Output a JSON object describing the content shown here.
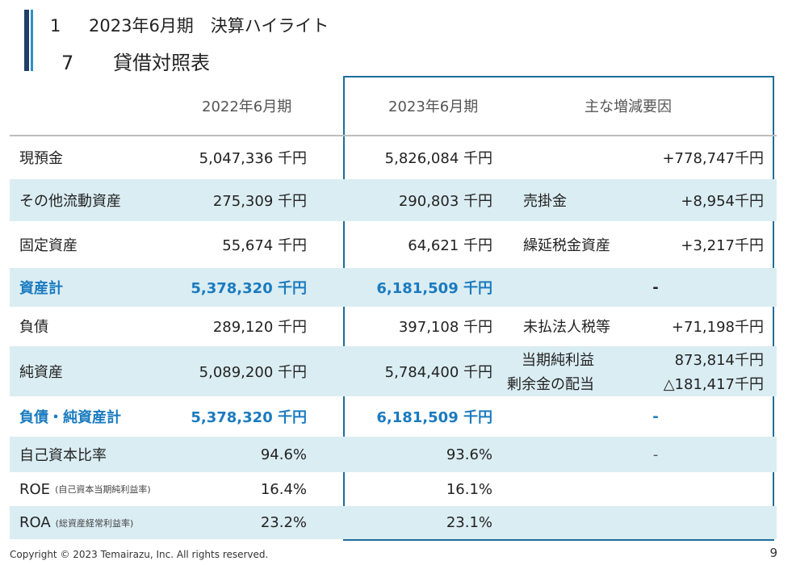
{
  "heading": {
    "section_number": "1",
    "section_title": "2023年6月期　決算ハイライト",
    "sub_number": "7",
    "sub_title": "貸借対照表"
  },
  "columns": {
    "prev": "2022年6月期",
    "curr": "2023年6月期",
    "factors": "主な増減要因"
  },
  "rows": [
    {
      "label": "現預金",
      "prev": "5,047,336 千円",
      "curr": "5,826,084 千円",
      "factor": "",
      "change": "+778,747千円"
    },
    {
      "label": "その他流動資産",
      "prev": "275,309 千円",
      "curr": "290,803 千円",
      "factor": "売掛金",
      "change": "+8,954千円"
    },
    {
      "label": "固定資産",
      "prev": "55,674 千円",
      "curr": "64,621 千円",
      "factor": "繰延税金資産",
      "change": "+3,217千円"
    },
    {
      "label": "資産計",
      "prev": "5,378,320 千円",
      "curr": "6,181,509 千円",
      "note": "-"
    },
    {
      "label": "負債",
      "prev": "289,120 千円",
      "curr": "397,108 千円",
      "factor": "未払法人税等",
      "change": "+71,198千円"
    },
    {
      "label": "純資産",
      "prev": "5,089,200 千円",
      "curr": "5,784,400 千円",
      "factor_1": "当期純利益",
      "factor_2": "剰余金の配当",
      "change_1": "873,814千円",
      "change_2": "△181,417千円"
    },
    {
      "label": "負債・純資産計",
      "prev": "5,378,320 千円",
      "curr": "6,181,509 千円",
      "note": "-"
    },
    {
      "label": "自己資本比率",
      "prev": "94.6%",
      "curr": "93.6%",
      "note": "-"
    },
    {
      "label": "ROE",
      "sublabel": "(自己資本当期純利益率)",
      "prev": "16.4%",
      "curr": "16.1%"
    },
    {
      "label": "ROA",
      "sublabel": "(総資産経常利益率)",
      "prev": "23.2%",
      "curr": "23.1%"
    }
  ],
  "footer": {
    "copyright": "Copyright © 2023 Temairazu, Inc. All rights reserved.",
    "page": "9"
  },
  "colors": {
    "accent_dark": "#1f3f66",
    "accent_light": "#2e8fc8",
    "shade": "#daedf3",
    "highlight_text": "#1a7bbf",
    "box_border": "#1f6d9c"
  }
}
